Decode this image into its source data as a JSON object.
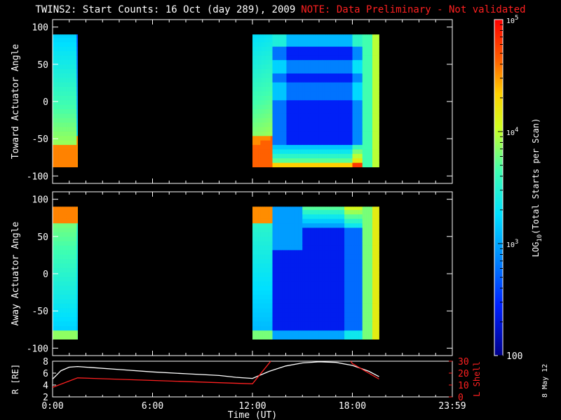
{
  "header": {
    "title": "TWINS2: Start Counts: 16 Oct (day 289), 2009",
    "note": "NOTE: Data Preliminary - Not validated"
  },
  "side_date": "8 May 12",
  "colors": {
    "note": "#ff2020",
    "lshell": "#ff2020",
    "radius": "#ffffff",
    "background": "#000000"
  },
  "chart_data": [
    {
      "type": "heatmap",
      "panel": "toward",
      "ylabel": "Toward Actuator Angle",
      "ylim": [
        -110,
        110
      ],
      "yticks": [
        "100",
        "50",
        "0",
        "-50",
        "-100"
      ],
      "x_range_hours": [
        0,
        24
      ],
      "data_intervals_hours": [
        [
          0,
          1.5
        ],
        [
          12,
          19.6
        ]
      ],
      "angle_range": [
        -88,
        90
      ]
    },
    {
      "type": "heatmap",
      "panel": "away",
      "ylabel": "Away Actuator Angle",
      "ylim": [
        -110,
        110
      ],
      "yticks": [
        "100",
        "50",
        "0",
        "-50",
        "-100"
      ],
      "x_range_hours": [
        0,
        24
      ],
      "data_intervals_hours": [
        [
          0,
          1.5
        ],
        [
          12,
          19.6
        ]
      ],
      "angle_range": [
        -88,
        90
      ]
    },
    {
      "type": "line",
      "panel": "ephemeris",
      "xlabel": "Time (UT)",
      "xticks": [
        "0:00",
        "6:00",
        "12:00",
        "18:00",
        "23:59"
      ],
      "left_axis": {
        "label": "R [RE]",
        "ylim": [
          2,
          8
        ],
        "yticks": [
          "8",
          "6",
          "4",
          "2"
        ]
      },
      "right_axis": {
        "label": "L Shell",
        "ylim": [
          0,
          30
        ],
        "yticks": [
          "30",
          "20",
          "10",
          "0"
        ]
      },
      "series": [
        {
          "name": "R",
          "axis": "left",
          "x": [
            0,
            0.5,
            1,
            1.5,
            2,
            4,
            6,
            8,
            10,
            11,
            12,
            13,
            14,
            15,
            16,
            17,
            18,
            19,
            19.6
          ],
          "y": [
            5.0,
            6.4,
            7.0,
            7.1,
            7.0,
            6.6,
            6.2,
            5.9,
            5.6,
            5.3,
            5.1,
            6.3,
            7.2,
            7.7,
            7.9,
            7.8,
            7.3,
            6.3,
            5.4
          ]
        },
        {
          "name": "L",
          "axis": "right",
          "x": [
            0,
            1.5,
            12,
            13.1,
            13.2,
            17.9,
            18,
            19.6
          ],
          "y": [
            8,
            16,
            11,
            30,
            null,
            30,
            28,
            15
          ]
        }
      ]
    },
    {
      "type": "colorbar",
      "label": "LOG10(Total Starts per Scan)",
      "tick_labels": [
        "10^5",
        "10^4",
        "10^3",
        "100"
      ],
      "range": [
        100,
        100000
      ],
      "scale": "log"
    }
  ]
}
